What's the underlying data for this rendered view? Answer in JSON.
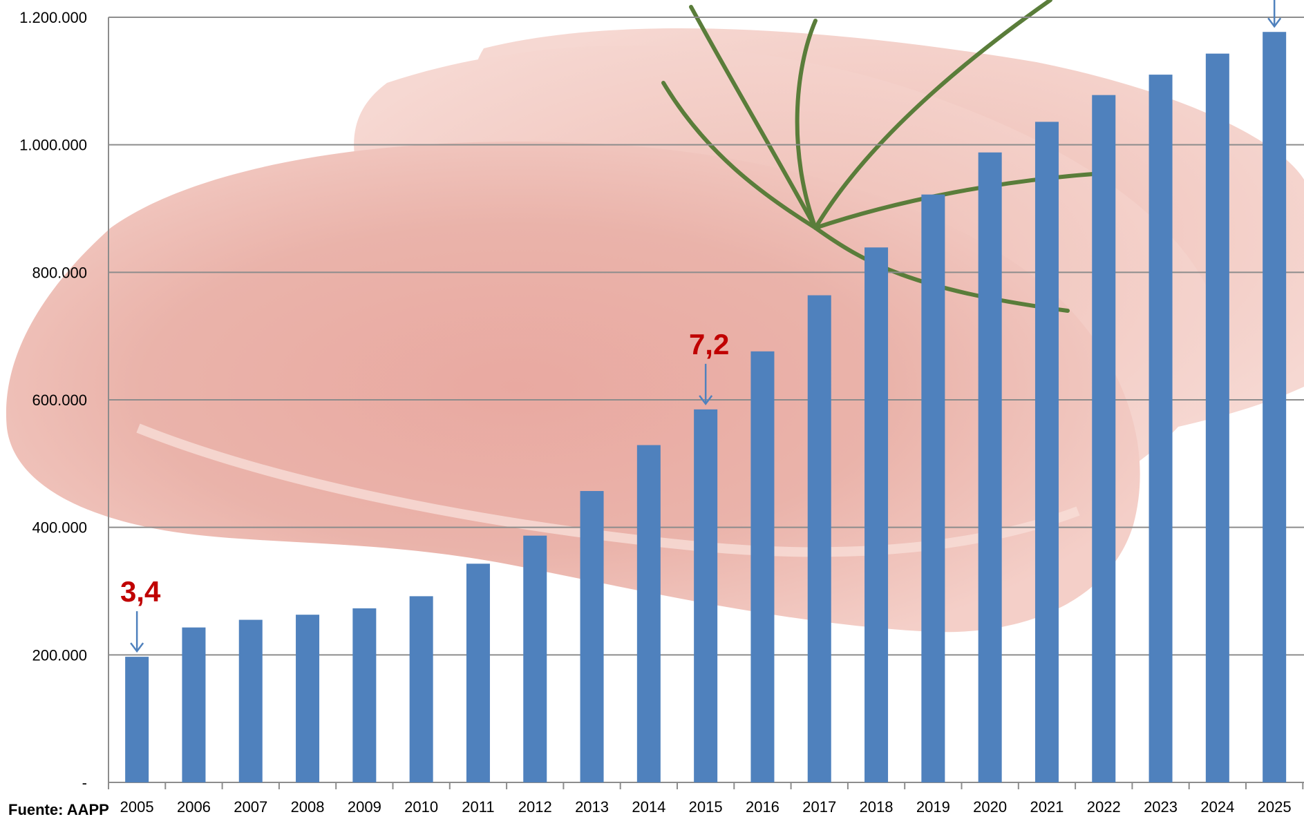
{
  "chart_data": {
    "type": "bar",
    "categories": [
      "2005",
      "2006",
      "2007",
      "2008",
      "2009",
      "2010",
      "2011",
      "2012",
      "2013",
      "2014",
      "2015",
      "2016",
      "2017",
      "2018",
      "2019",
      "2020",
      "2021",
      "2022",
      "2023",
      "2024",
      "2025"
    ],
    "series": [
      {
        "values": [
          197000,
          243000,
          255000,
          263000,
          273000,
          292000,
          343000,
          387000,
          457000,
          529000,
          585000,
          676000,
          764000,
          839000,
          922000,
          988000,
          1036000,
          1078000,
          1110000,
          1143000,
          1177000
        ]
      }
    ],
    "ylim": [
      0,
      1200000
    ],
    "yticks": [
      {
        "value": 0,
        "label": "-"
      },
      {
        "value": 200000,
        "label": "200.000"
      },
      {
        "value": 400000,
        "label": "400.000"
      },
      {
        "value": 600000,
        "label": "600.000"
      },
      {
        "value": 800000,
        "label": "800.000"
      },
      {
        "value": 1000000,
        "label": "1.000.000"
      },
      {
        "value": 1200000,
        "label": "1.200.000"
      }
    ],
    "grid": true,
    "bar_color": "#4f81bd",
    "annotations": [
      {
        "category": "2005",
        "text": "3,4"
      },
      {
        "category": "2015",
        "text": "7,2"
      },
      {
        "category": "2025",
        "text": ""
      }
    ],
    "annotation_color": "#c00000",
    "arrow_color": "#4f81bd"
  },
  "source": "Fuente: AAPP"
}
